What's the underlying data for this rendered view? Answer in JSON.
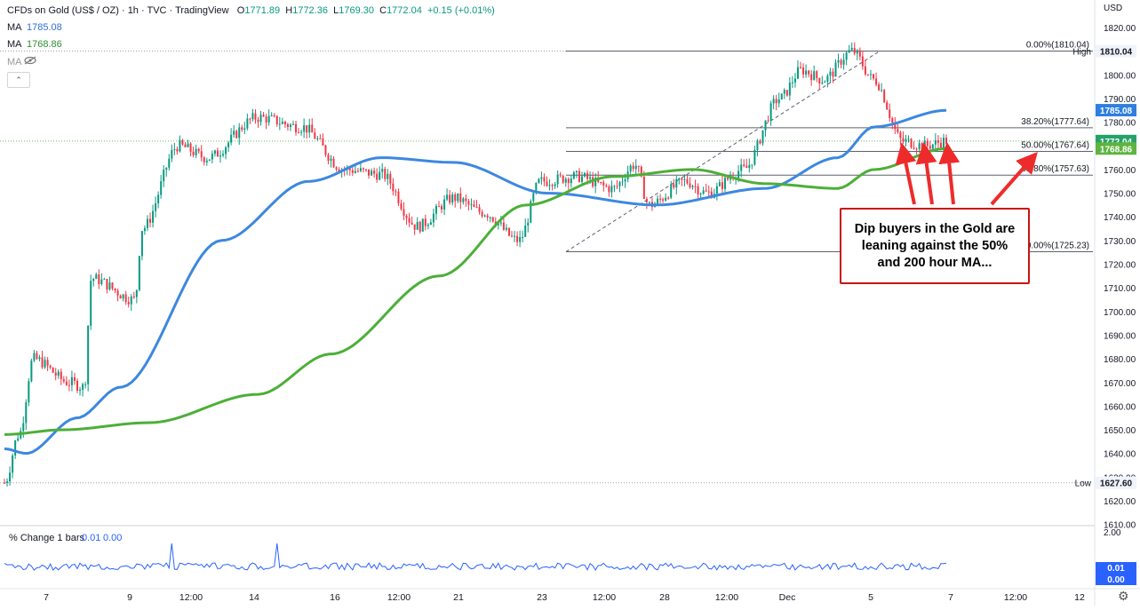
{
  "header": {
    "symbol": "CFDs on Gold (US$ / OZ) · 1h · TVC · TradingView",
    "open_label": "O",
    "open": "1771.89",
    "high_label": "H",
    "high": "1772.36",
    "low_label": "L",
    "low": "1769.30",
    "close_label": "C",
    "close": "1772.04",
    "change": "+0.15 (+0.01%)"
  },
  "indicators": [
    {
      "label": "MA",
      "value": "1785.08",
      "color": "#2f6fd6"
    },
    {
      "label": "MA",
      "value": "1768.86",
      "color": "#2f8f2f"
    },
    {
      "label": "MA",
      "value": ""
    }
  ],
  "hidden_indicator_icon": "eye-crossed-icon",
  "collapse_icon": "chevron-up-icon",
  "currency": "USD",
  "price_axis_ticks": [
    "1820.00",
    "1810.00",
    "1800.00",
    "1790.00",
    "1780.00",
    "1770.00",
    "1760.00",
    "1750.00",
    "1740.00",
    "1730.00",
    "1720.00",
    "1710.00",
    "1700.00",
    "1690.00",
    "1680.00",
    "1670.00",
    "1660.00",
    "1650.00",
    "1640.00",
    "1630.00",
    "1620.00",
    "1610.00"
  ],
  "price_labels": {
    "high_tag": "High",
    "high_value": "1810.04",
    "low_tag": "Low",
    "low_value": "1627.60",
    "ma_blue": "1785.08",
    "last_price": "1772.04",
    "ma_green": "1768.86"
  },
  "fib_labels": [
    {
      "text": "0.00%(1810.04)",
      "price": 1810.04
    },
    {
      "text": "38.20%(1777.64)",
      "price": 1777.64
    },
    {
      "text": "50.00%(1767.64)",
      "price": 1767.64
    },
    {
      "text": "61.80%(1757.63)",
      "price": 1757.63
    },
    {
      "text": "0.00%(1725.23)",
      "price": 1725.23
    }
  ],
  "time_axis_ticks": [
    "7",
    "9",
    "12:00",
    "14",
    "16",
    "12:00",
    "21",
    "23",
    "12:00",
    "28",
    "12:00",
    "Dec",
    "5",
    "7",
    "12:00",
    "12"
  ],
  "sub_pane": {
    "title": "% Change 1 bars",
    "value1": "0.01",
    "value2": "0.00",
    "axis_top": "2.00",
    "tag1": "0.01",
    "tag2": "0.00"
  },
  "annotation": "Dip buyers in the Gold are leaning against the 50% and 200 hour MA...",
  "colors": {
    "up": "#089981",
    "down": "#f23645",
    "ma_fast": "#3c88e0",
    "ma_slow": "#4caf38",
    "arrow": "#ee2b2b",
    "change_line": "#2962ff"
  },
  "chart_data": {
    "type": "line",
    "title": "CFDs on Gold (US$ / OZ) · 1h · TVC",
    "xlabel": "",
    "ylabel": "",
    "ylim": [
      1605,
      1825
    ],
    "grid": false,
    "series": [
      {
        "name": "Price",
        "x": [
          "7",
          "9",
          "12:00",
          "14",
          "16",
          "12:00",
          "21",
          "23",
          "12:00",
          "28",
          "12:00",
          "Dec",
          "5",
          "7"
        ],
        "anchors": [
          [
            0,
            1627.6
          ],
          [
            0.02,
            1648
          ],
          [
            0.04,
            1680
          ],
          [
            0.09,
            1670
          ],
          [
            0.11,
            1668
          ],
          [
            0.12,
            1714
          ],
          [
            0.18,
            1705
          ],
          [
            0.19,
            1735
          ],
          [
            0.24,
            1770
          ],
          [
            0.28,
            1765
          ],
          [
            0.35,
            1782
          ],
          [
            0.41,
            1778
          ],
          [
            0.47,
            1760
          ],
          [
            0.52,
            1758
          ],
          [
            0.57,
            1736
          ],
          [
            0.62,
            1748
          ],
          [
            0.66,
            1742
          ],
          [
            0.71,
            1730
          ],
          [
            0.74,
            1755
          ],
          [
            0.79,
            1757
          ],
          [
            0.84,
            1752
          ],
          [
            0.87,
            1762
          ],
          [
            0.89,
            1745
          ],
          [
            0.94,
            1755
          ],
          [
            0.97,
            1750
          ],
          [
            1.02,
            1760
          ],
          [
            1.07,
            1790
          ],
          [
            1.1,
            1802
          ],
          [
            1.13,
            1798
          ],
          [
            1.17,
            1810
          ],
          [
            1.2,
            1798
          ],
          [
            1.24,
            1772
          ],
          [
            1.27,
            1770
          ],
          [
            1.3,
            1772
          ]
        ]
      },
      {
        "name": "MA",
        "value": 1785.08,
        "anchors": [
          [
            0,
            1642
          ],
          [
            0.03,
            1640
          ],
          [
            0.1,
            1655
          ],
          [
            0.16,
            1668
          ],
          [
            0.3,
            1730
          ],
          [
            0.42,
            1755
          ],
          [
            0.52,
            1765
          ],
          [
            0.62,
            1763
          ],
          [
            0.75,
            1750
          ],
          [
            0.9,
            1745
          ],
          [
            1.05,
            1752
          ],
          [
            1.15,
            1765
          ],
          [
            1.2,
            1778
          ],
          [
            1.3,
            1785
          ]
        ]
      },
      {
        "name": "MA",
        "value": 1768.86,
        "anchors": [
          [
            0,
            1648
          ],
          [
            0.08,
            1650
          ],
          [
            0.2,
            1653
          ],
          [
            0.35,
            1665
          ],
          [
            0.45,
            1682
          ],
          [
            0.6,
            1715
          ],
          [
            0.72,
            1745
          ],
          [
            0.84,
            1757
          ],
          [
            0.95,
            1760
          ],
          [
            1.05,
            1754
          ],
          [
            1.15,
            1752
          ],
          [
            1.2,
            1760
          ],
          [
            1.3,
            1768.86
          ]
        ]
      }
    ],
    "fibonacci": [
      {
        "level": "0.00%",
        "price": 1810.04
      },
      {
        "level": "38.20%",
        "price": 1777.64
      },
      {
        "level": "50.00%",
        "price": 1767.64
      },
      {
        "level": "61.80%",
        "price": 1757.63
      },
      {
        "level": "0.00%",
        "price": 1725.23
      }
    ],
    "high": 1810.04,
    "low": 1627.6,
    "last": 1772.04
  }
}
